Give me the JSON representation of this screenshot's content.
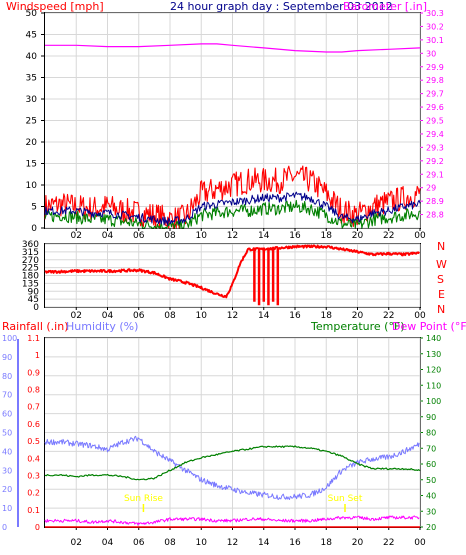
{
  "header": {
    "wind_title": "Windspeed [mph]",
    "main_title": "24 hour graph day : September 03 2012",
    "baro_title": "Barometer [.in]"
  },
  "lower_header": {
    "rain_title": "Rainfall (.in)",
    "humidity_title": "Humidity (%)",
    "temp_title": "Temperature (°F)",
    "dew_title": "Dew Point (°F)"
  },
  "compass": {
    "letters": [
      "N",
      "W",
      "S",
      "E",
      "N"
    ]
  },
  "annotations": {
    "sunrise": "Sun Rise",
    "sunset": "Sun Set"
  },
  "colors": {
    "background": "#ffffff",
    "frame": "#000000",
    "wind": "#ff0000",
    "barometer": "#ff00ff",
    "direction": "#ff0000",
    "humidity": "#7a7aff",
    "temperature": "#008000",
    "dewpoint": "#ff00ff",
    "rain": "#ff0000",
    "main_title": "#00008b",
    "sun": "#ffff00",
    "grid": "#d8d8d8"
  },
  "chart_data": [
    {
      "type": "line",
      "title": "24 hour graph day : September 03 2012",
      "x_ticks": [
        "02",
        "04",
        "06",
        "08",
        "10",
        "12",
        "14",
        "16",
        "18",
        "20",
        "22",
        "00"
      ],
      "xlim_hours": [
        0,
        24
      ],
      "y_left": {
        "label": "Windspeed [mph]",
        "range": [
          0,
          50
        ],
        "ticks": [
          0,
          5,
          10,
          15,
          20,
          25,
          30,
          35,
          40,
          45,
          50
        ]
      },
      "y_right": {
        "label": "Barometer [.in]",
        "range": [
          28.7,
          30.3
        ],
        "ticks": [
          "28.8",
          "28.9",
          "29",
          "29.1",
          "29.2",
          "29.3",
          "29.4",
          "29.5",
          "29.6",
          "29.7",
          "29.8",
          "29.9",
          "30",
          "30.1",
          "30.2",
          "30.3"
        ]
      },
      "grid": true,
      "series": [
        {
          "color": "#ff0000",
          "axis": "left",
          "x": [
            0,
            1,
            2,
            3,
            4,
            5,
            6,
            7,
            8,
            9,
            10,
            11,
            12,
            13,
            14,
            15,
            16,
            17,
            18,
            19,
            20,
            21,
            22,
            23,
            24
          ],
          "y": [
            5,
            5.5,
            5,
            4.5,
            5,
            4,
            3.5,
            3,
            2,
            2.5,
            8,
            9,
            10,
            11,
            11,
            11,
            12,
            11,
            8,
            4,
            3,
            5,
            6,
            7,
            8
          ]
        },
        {
          "color": "#00008b",
          "axis": "left",
          "x": [
            0,
            1,
            2,
            3,
            4,
            5,
            6,
            7,
            8,
            9,
            10,
            11,
            12,
            13,
            14,
            15,
            16,
            17,
            18,
            19,
            20,
            21,
            22,
            23,
            24
          ],
          "y": [
            4,
            4,
            4,
            3.5,
            3.5,
            3,
            2.5,
            2,
            1.5,
            2,
            5,
            5.5,
            6,
            6.5,
            7,
            7,
            7.5,
            7,
            5,
            2.5,
            2,
            3.5,
            4,
            5,
            5.5
          ]
        },
        {
          "color": "#008000",
          "axis": "left",
          "x": [
            0,
            1,
            2,
            3,
            4,
            5,
            6,
            7,
            8,
            9,
            10,
            11,
            12,
            13,
            14,
            15,
            16,
            17,
            18,
            19,
            20,
            21,
            22,
            23,
            24
          ],
          "y": [
            2.5,
            3,
            2.5,
            2,
            2,
            1.5,
            1,
            0.5,
            0.3,
            0.5,
            3,
            3.5,
            4,
            4,
            4.5,
            4.5,
            5,
            4.5,
            3,
            1,
            0.5,
            2,
            2.5,
            3,
            3.5
          ]
        },
        {
          "color": "#ff00ff",
          "axis": "right",
          "x": [
            0,
            2,
            4,
            6,
            8,
            10,
            11,
            12,
            14,
            16,
            18,
            19,
            20,
            22,
            24
          ],
          "y": [
            30.06,
            30.06,
            30.05,
            30.05,
            30.06,
            30.07,
            30.07,
            30.06,
            30.04,
            30.02,
            30.01,
            30.01,
            30.02,
            30.03,
            30.04
          ]
        }
      ]
    },
    {
      "type": "line",
      "title": "",
      "x_ticks": [
        "02",
        "04",
        "06",
        "08",
        "10",
        "12",
        "14",
        "16",
        "18",
        "20",
        "22",
        "00"
      ],
      "xlim_hours": [
        0,
        24
      ],
      "y_left": {
        "label": "",
        "range": [
          0,
          360
        ],
        "ticks": [
          0,
          45,
          90,
          135,
          180,
          225,
          270,
          315,
          360
        ]
      },
      "series": [
        {
          "color": "#ff0000",
          "axis": "left",
          "x": [
            0,
            2,
            4,
            6,
            7,
            8,
            9,
            10,
            11,
            11.6,
            12,
            12.5,
            13,
            14,
            16,
            18,
            19,
            20,
            21,
            22,
            23,
            24
          ],
          "y": [
            200,
            205,
            205,
            210,
            195,
            160,
            140,
            110,
            75,
            60,
            130,
            250,
            330,
            330,
            345,
            345,
            330,
            315,
            300,
            305,
            300,
            310
          ]
        }
      ]
    },
    {
      "type": "line",
      "title": "",
      "x_ticks": [
        "02",
        "04",
        "06",
        "08",
        "10",
        "12",
        "14",
        "16",
        "18",
        "20",
        "22",
        "00"
      ],
      "xlim_hours": [
        0,
        24
      ],
      "y_left_humidity": {
        "label": "Humidity (%)",
        "range": [
          0,
          100
        ],
        "ticks": [
          0,
          10,
          20,
          30,
          40,
          50,
          60,
          70,
          80,
          90,
          100
        ]
      },
      "y_left_rain": {
        "label": "Rainfall (.in)",
        "range": [
          0,
          1.1
        ],
        "ticks": [
          "0",
          "0.1",
          "0.2",
          "0.3",
          "0.4",
          "0.5",
          "0.6",
          "0.7",
          "0.8",
          "0.9",
          "1",
          "1.1"
        ]
      },
      "y_right": {
        "label": "Temperature (°F)",
        "range": [
          20,
          140
        ],
        "ticks": [
          20,
          30,
          40,
          50,
          60,
          70,
          80,
          90,
          100,
          110,
          120,
          130,
          140
        ]
      },
      "series": [
        {
          "color": "#7a7aff",
          "axis": "humidity",
          "x": [
            0,
            1,
            2,
            3,
            4,
            5,
            6,
            7,
            8,
            9,
            10,
            11,
            12,
            13,
            14,
            15,
            16,
            17,
            18,
            19,
            20,
            21,
            22,
            23,
            24
          ],
          "y": [
            45,
            45,
            44,
            43,
            41,
            45,
            47,
            40,
            35,
            30,
            25,
            22,
            20,
            18,
            17,
            16,
            16,
            17,
            21,
            30,
            34,
            36,
            37,
            40,
            44
          ]
        },
        {
          "color": "#008000",
          "axis": "right",
          "x": [
            0,
            1,
            2,
            3,
            4,
            5,
            6,
            7,
            8,
            9,
            10,
            11,
            12,
            13,
            14,
            15,
            16,
            17,
            18,
            19,
            20,
            21,
            22,
            23,
            24
          ],
          "y": [
            53,
            53,
            52,
            53,
            53,
            52,
            50,
            51,
            56,
            61,
            64,
            66,
            68,
            69.5,
            71,
            71,
            71,
            70,
            68,
            65,
            60,
            57,
            57,
            57,
            56
          ]
        },
        {
          "color": "#ff00ff",
          "axis": "right",
          "x": [
            0,
            1,
            2,
            3,
            4,
            5,
            6,
            7,
            8,
            9,
            10,
            11,
            12,
            13,
            14,
            15,
            16,
            17,
            18,
            19,
            20,
            21,
            22,
            23,
            24
          ],
          "y": [
            24,
            24,
            24,
            23,
            24,
            23,
            22,
            23,
            25,
            25,
            25,
            24,
            24,
            25,
            25,
            24,
            24,
            24,
            25,
            26,
            26,
            25,
            26,
            26,
            26
          ]
        },
        {
          "color": "#ff0000",
          "axis": "rain",
          "x": [
            0,
            24
          ],
          "y": [
            0,
            0
          ]
        }
      ],
      "markers": [
        {
          "hour": 6.3,
          "label": "Sun Rise"
        },
        {
          "hour": 19.2,
          "label": "Sun Set"
        }
      ]
    }
  ]
}
